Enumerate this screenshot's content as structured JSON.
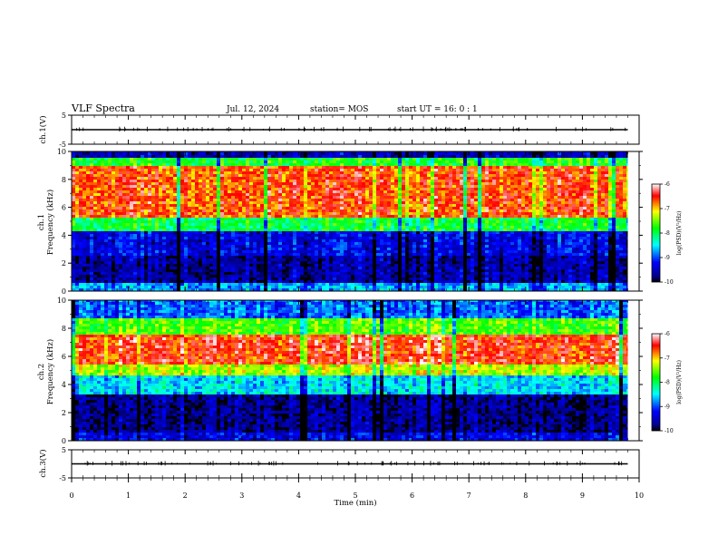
{
  "header": {
    "title": "VLF Spectra",
    "date": "Jul. 12, 2024",
    "station": "station= MOS",
    "start": "start  UT =   16: 0  : 1"
  },
  "colorbar": {
    "label": "log(PSD)(V²/Hz)",
    "ticks": [
      "-6",
      "-7",
      "-8",
      "-9",
      "-10"
    ]
  },
  "chart_data": [
    {
      "type": "line",
      "panel": "ch.1 waveform",
      "ylabel": "ch.1(V)",
      "ylim": [
        -5,
        5
      ],
      "yticks": [
        "5",
        "-5"
      ],
      "xlim": [
        0,
        10
      ],
      "series": [
        {
          "x": [
            0,
            9.8
          ],
          "y": [
            0,
            0
          ]
        }
      ]
    },
    {
      "type": "heatmap",
      "panel": "ch.1 spectrogram",
      "ylabel": "ch.1 Frequency (kHz)",
      "ylim": [
        0,
        10
      ],
      "yticks": [
        "0",
        "2",
        "4",
        "6",
        "8",
        "10"
      ],
      "xlim": [
        0,
        10
      ],
      "data_extent_min": 9.8,
      "colormap": "jet",
      "zlim": [
        -10,
        -6
      ],
      "zlabel": "log(PSD)(V²/Hz)",
      "bands": [
        {
          "fmin": 0,
          "fmax": 0.6,
          "logpsd": -8.7
        },
        {
          "fmin": 0.6,
          "fmax": 2.5,
          "logpsd": -9.6
        },
        {
          "fmin": 2.5,
          "fmax": 4.2,
          "logpsd": -9.3
        },
        {
          "fmin": 4.2,
          "fmax": 5.2,
          "logpsd": -7.9
        },
        {
          "fmin": 5.2,
          "fmax": 9.0,
          "logpsd": -6.6
        },
        {
          "fmin": 9.0,
          "fmax": 9.6,
          "logpsd": -7.8
        },
        {
          "fmin": 9.6,
          "fmax": 10,
          "logpsd": -9.5
        }
      ]
    },
    {
      "type": "heatmap",
      "panel": "ch.2 spectrogram",
      "ylabel": "ch.2 Frequency (kHz)",
      "ylim": [
        0,
        10
      ],
      "yticks": [
        "0",
        "2",
        "4",
        "6",
        "8",
        "10"
      ],
      "xlim": [
        0,
        10
      ],
      "data_extent_min": 9.8,
      "colormap": "jet",
      "zlim": [
        -10,
        -6
      ],
      "zlabel": "log(PSD)(V²/Hz)",
      "bands": [
        {
          "fmin": 0,
          "fmax": 0.5,
          "logpsd": -9.3
        },
        {
          "fmin": 0.5,
          "fmax": 3.2,
          "logpsd": -9.7
        },
        {
          "fmin": 3.2,
          "fmax": 4.6,
          "logpsd": -8.5
        },
        {
          "fmin": 4.6,
          "fmax": 5.4,
          "logpsd": -7.3
        },
        {
          "fmin": 5.4,
          "fmax": 7.6,
          "logpsd": -6.5
        },
        {
          "fmin": 7.6,
          "fmax": 8.8,
          "logpsd": -7.6
        },
        {
          "fmin": 8.8,
          "fmax": 10,
          "logpsd": -8.9
        }
      ]
    },
    {
      "type": "line",
      "panel": "ch.3 waveform",
      "ylabel": "ch.3(V)",
      "ylim": [
        -5,
        5
      ],
      "yticks": [
        "5",
        "-5"
      ],
      "xlim": [
        0,
        10
      ],
      "xlabel": "Time  (min)",
      "xticks": [
        "0",
        "1",
        "2",
        "3",
        "4",
        "5",
        "6",
        "7",
        "8",
        "9",
        "10"
      ],
      "series": [
        {
          "x": [
            0,
            9.8
          ],
          "y": [
            0,
            0
          ]
        }
      ]
    }
  ]
}
